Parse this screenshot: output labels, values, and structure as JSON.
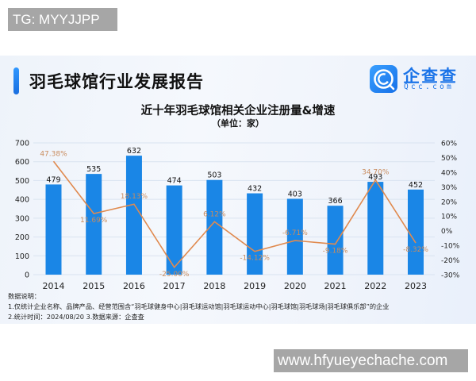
{
  "watermarks": {
    "top_left": "TG: MYYJJPP",
    "bottom_right": "www.hfyueyechache.com"
  },
  "header": {
    "report_title": "羽毛球馆行业发展报告",
    "logo": {
      "cn": "企查查",
      "en": "Qcc.com",
      "icon": "qcc-logo-icon"
    }
  },
  "colors": {
    "bar": "#1a86e6",
    "line": "#e08a4f",
    "line_label": "#c98c5e",
    "gridline": "#d9e3f0",
    "accent": "#1a73e8"
  },
  "chart_data": {
    "type": "bar",
    "title": "近十年羽毛球馆相关企业注册量&增速",
    "subtitle": "（单位：家）",
    "categories": [
      "2014",
      "2015",
      "2016",
      "2017",
      "2018",
      "2019",
      "2020",
      "2021",
      "2022",
      "2023"
    ],
    "series": [
      {
        "name": "注册量",
        "type": "bar",
        "axis": "left",
        "values": [
          479,
          535,
          632,
          474,
          503,
          432,
          403,
          366,
          493,
          452
        ]
      },
      {
        "name": "增速",
        "type": "line",
        "axis": "right",
        "values": [
          47.38,
          11.69,
          18.13,
          -25.0,
          6.12,
          -14.12,
          -6.71,
          -9.18,
          34.7,
          -8.32
        ],
        "labels": [
          "47.38%",
          "11.69%",
          "18.13%",
          "-25.00%",
          "6.12%",
          "-14.12%",
          "-6.71%",
          "-9.18%",
          "34.70%",
          "-8.32%"
        ]
      }
    ],
    "left_axis": {
      "ylim": [
        0,
        700
      ],
      "ticks": [
        "0",
        "100",
        "200",
        "300",
        "400",
        "500",
        "600",
        "700"
      ]
    },
    "right_axis": {
      "ylim": [
        -30,
        60
      ],
      "ticks": [
        "-30%",
        "-20%",
        "-10%",
        "0%",
        "10%",
        "20%",
        "30%",
        "40%",
        "50%",
        "60%"
      ]
    },
    "grid": true,
    "legend": "none"
  },
  "notes": {
    "heading": "数据说明：",
    "line1": "1.仅统计企业名称、品牌产品、经营范围含“羽毛球健身中心|羽毛球运动馆|羽毛球运动中心|羽毛球馆|羽毛球场|羽毛球俱乐部”的企业",
    "line2": "2.统计时间：2024/08/20    3.数据来源：企查查"
  }
}
